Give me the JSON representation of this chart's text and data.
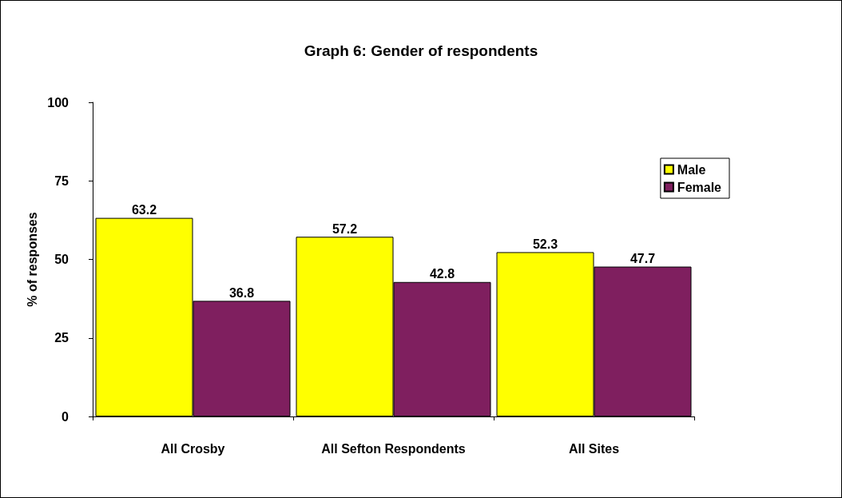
{
  "chart_data": {
    "type": "bar",
    "title": "Graph 6: Gender of respondents",
    "ylabel": "% of responses",
    "categories": [
      "All Crosby",
      "All Sefton Respondents",
      "All Sites"
    ],
    "series": [
      {
        "name": "Male",
        "color": "#ffff00",
        "values": [
          63.2,
          57.2,
          52.3
        ]
      },
      {
        "name": "Female",
        "color": "#7f1f5f",
        "values": [
          36.8,
          42.8,
          47.7
        ]
      }
    ],
    "ylim": [
      0,
      100
    ],
    "yticks": [
      0,
      25,
      50,
      75,
      100
    ],
    "grid": false,
    "legend": "top right",
    "data_labels": true
  }
}
